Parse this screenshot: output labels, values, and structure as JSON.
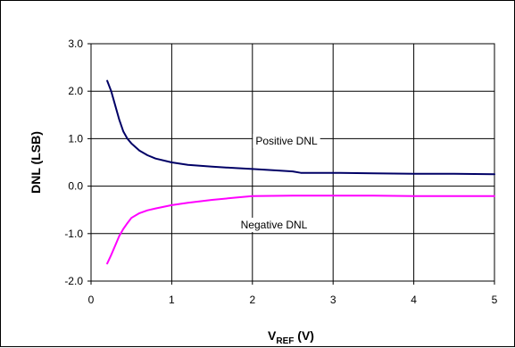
{
  "chart_data": {
    "type": "line",
    "title": "",
    "xlabel": "V",
    "xlabel_subscript": "REF",
    "xlabel_suffix": " (V)",
    "ylabel": "DNL (LSB)",
    "xlim": [
      0,
      5
    ],
    "ylim": [
      -2.0,
      3.0
    ],
    "x_ticks": [
      "0",
      "1",
      "2",
      "3",
      "4",
      "5"
    ],
    "y_ticks": [
      "-2.0",
      "-1.0",
      "0.0",
      "1.0",
      "2.0",
      "3.0"
    ],
    "grid": true,
    "legend": "none",
    "series": [
      {
        "name": "Positive DNL",
        "color": "#000066",
        "x": [
          0.2,
          0.25,
          0.3,
          0.35,
          0.4,
          0.45,
          0.5,
          0.6,
          0.7,
          0.8,
          1.0,
          1.2,
          1.5,
          1.8,
          2.0,
          2.3,
          2.5,
          2.6,
          3.0,
          3.5,
          4.0,
          4.5,
          5.0
        ],
        "values": [
          2.22,
          2.0,
          1.7,
          1.4,
          1.15,
          1.0,
          0.9,
          0.75,
          0.65,
          0.58,
          0.5,
          0.45,
          0.41,
          0.38,
          0.36,
          0.33,
          0.31,
          0.28,
          0.28,
          0.27,
          0.26,
          0.26,
          0.25
        ]
      },
      {
        "name": "Negative DNL",
        "color": "#ff00ff",
        "x": [
          0.2,
          0.25,
          0.3,
          0.35,
          0.4,
          0.45,
          0.5,
          0.6,
          0.7,
          0.8,
          1.0,
          1.2,
          1.5,
          1.8,
          2.0,
          2.5,
          3.0,
          3.5,
          4.0,
          4.5,
          5.0
        ],
        "values": [
          -1.63,
          -1.45,
          -1.25,
          -1.05,
          -0.9,
          -0.78,
          -0.67,
          -0.57,
          -0.51,
          -0.47,
          -0.4,
          -0.35,
          -0.29,
          -0.24,
          -0.21,
          -0.2,
          -0.2,
          -0.2,
          -0.21,
          -0.21,
          -0.21
        ]
      }
    ],
    "annotations": [
      {
        "text": "Positive DNL",
        "series": 0
      },
      {
        "text": "Negative DNL",
        "series": 1
      }
    ]
  }
}
